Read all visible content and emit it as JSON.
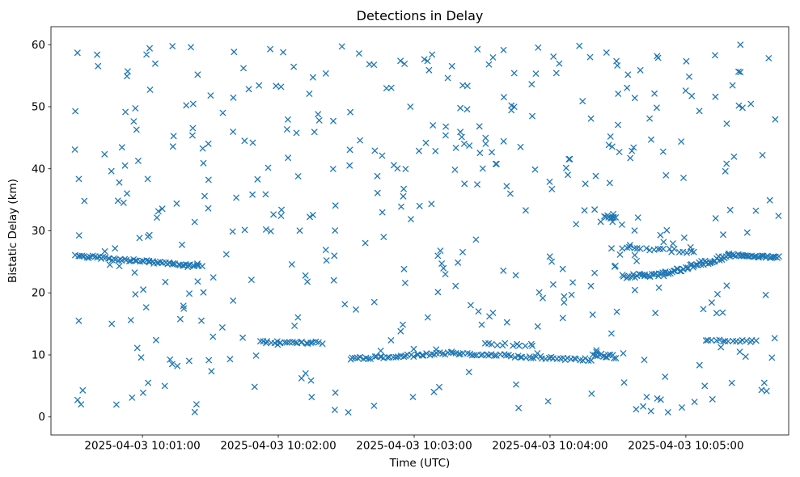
{
  "chart_data": {
    "type": "scatter",
    "title": "Detections in Delay",
    "xlabel": "Time (UTC)",
    "ylabel": "Bistatic Delay (km)",
    "x_unit": "seconds after 2025-04-03 10:00:00 UTC",
    "xlim": [
      19.6,
      345.4
    ],
    "ylim": [
      -2.9,
      62.9
    ],
    "grid": false,
    "legend": null,
    "marker": {
      "shape": "x",
      "color": "#1f77b4",
      "size": 6.4,
      "stroke_width": 1.3
    },
    "x_ticks": [
      {
        "t": 60,
        "label": "2025-04-03 10:01:00"
      },
      {
        "t": 120,
        "label": "2025-04-03 10:02:00"
      },
      {
        "t": 180,
        "label": "2025-04-03 10:03:00"
      },
      {
        "t": 240,
        "label": "2025-04-03 10:04:00"
      },
      {
        "t": 300,
        "label": "2025-04-03 10:05:00"
      }
    ],
    "y_ticks": [
      {
        "v": 0,
        "label": "0"
      },
      {
        "v": 10,
        "label": "10"
      },
      {
        "v": 20,
        "label": "20"
      },
      {
        "v": 30,
        "label": "30"
      },
      {
        "v": 40,
        "label": "40"
      },
      {
        "v": 50,
        "label": "50"
      },
      {
        "v": 60,
        "label": "60"
      }
    ],
    "scatter_spec": {
      "seed": 7,
      "background": {
        "count": 430,
        "t_range": [
          30,
          341
        ],
        "y_range": [
          0.6,
          60.1
        ]
      },
      "tracks": [
        {
          "t": [
            30.5,
            86
          ],
          "y": [
            26.0,
            24.3
          ],
          "count": 60,
          "jitter": 0.22
        },
        {
          "t": [
            112,
            139
          ],
          "y": [
            12.05,
            11.95
          ],
          "count": 24,
          "jitter": 0.18
        },
        {
          "t": [
            152,
            197
          ],
          "y": [
            9.35,
            10.3
          ],
          "count": 40,
          "jitter": 0.22
        },
        {
          "t": [
            197,
            258
          ],
          "y": [
            10.3,
            9.2
          ],
          "count": 50,
          "jitter": 0.22
        },
        {
          "t": [
            211,
            233
          ],
          "y": [
            11.8,
            11.5
          ],
          "count": 12,
          "jitter": 0.25
        },
        {
          "t": [
            259,
            269
          ],
          "y": [
            10.2,
            9.6
          ],
          "count": 14,
          "jitter": 0.35
        },
        {
          "t": [
            272,
            290
          ],
          "y": [
            22.6,
            23.0
          ],
          "count": 24,
          "jitter": 0.3
        },
        {
          "t": [
            290,
            319
          ],
          "y": [
            23.0,
            26.0
          ],
          "count": 45,
          "jitter": 0.35
        },
        {
          "t": [
            319,
            341
          ],
          "y": [
            26.1,
            25.7
          ],
          "count": 34,
          "jitter": 0.2
        },
        {
          "t": [
            272,
            304
          ],
          "y": [
            27.3,
            26.6
          ],
          "count": 20,
          "jitter": 0.3
        },
        {
          "t": [
            264,
            269
          ],
          "y": [
            32.4,
            32.2
          ],
          "count": 9,
          "jitter": 0.3
        },
        {
          "t": [
            308.5,
            331
          ],
          "y": [
            12.3,
            12.2
          ],
          "count": 16,
          "jitter": 0.15
        }
      ]
    }
  }
}
